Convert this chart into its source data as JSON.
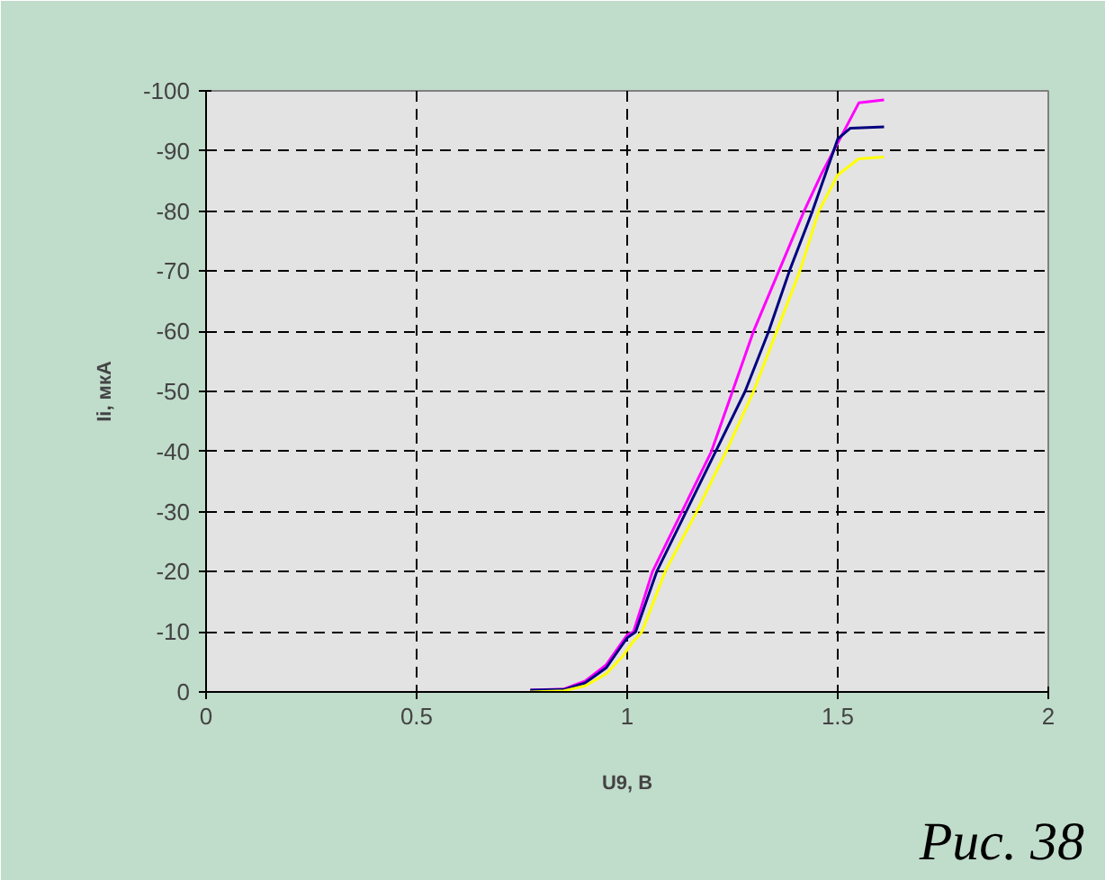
{
  "chart_data": {
    "type": "line",
    "xlabel": "U9, В",
    "ylabel": "Ii, мкА",
    "annotations": [
      "Рис. 38"
    ],
    "xlim": [
      0,
      2
    ],
    "xticks": [
      0,
      0.5,
      1,
      1.5,
      2
    ],
    "ylim": [
      0,
      -100
    ],
    "yticks": [
      0,
      -10,
      -20,
      -30,
      -40,
      -50,
      -60,
      -70,
      -80,
      -90,
      -100
    ],
    "grid": true,
    "marker": "none",
    "line_style": "solid",
    "series": [
      {
        "color": "#ff00ff",
        "x": [
          0.77,
          0.85,
          0.9,
          0.95,
          0.98,
          1.0,
          1.015,
          1.06,
          1.13,
          1.2,
          1.25,
          1.3,
          1.36,
          1.42,
          1.46,
          1.49,
          1.52,
          1.55,
          1.61
        ],
        "values": [
          -0.3,
          -0.5,
          -1.8,
          -4.5,
          -7.5,
          -9.5,
          -10,
          -20,
          -30,
          -40,
          -50,
          -60,
          -70,
          -80,
          -86,
          -90,
          -94,
          -98,
          -98.5
        ]
      },
      {
        "color": "#000080",
        "x": [
          0.77,
          0.85,
          0.9,
          0.95,
          0.98,
          1.0,
          1.02,
          1.07,
          1.14,
          1.21,
          1.28,
          1.336,
          1.385,
          1.44,
          1.47,
          1.5,
          1.53,
          1.61
        ],
        "values": [
          -0.3,
          -0.4,
          -1.5,
          -4,
          -7,
          -9,
          -10,
          -20,
          -30,
          -40,
          -50,
          -60,
          -70,
          -80,
          -86,
          -92,
          -93.8,
          -94
        ]
      },
      {
        "color": "#ffff00",
        "x": [
          0.77,
          0.85,
          0.9,
          0.95,
          0.99,
          1.01,
          1.035,
          1.09,
          1.165,
          1.235,
          1.3,
          1.355,
          1.41,
          1.455,
          1.5,
          1.55,
          1.61
        ],
        "values": [
          0,
          -0.2,
          -1,
          -3,
          -6,
          -8,
          -10,
          -20,
          -30,
          -40,
          -50,
          -60,
          -70,
          -80,
          -86,
          -88.7,
          -89
        ]
      }
    ]
  }
}
